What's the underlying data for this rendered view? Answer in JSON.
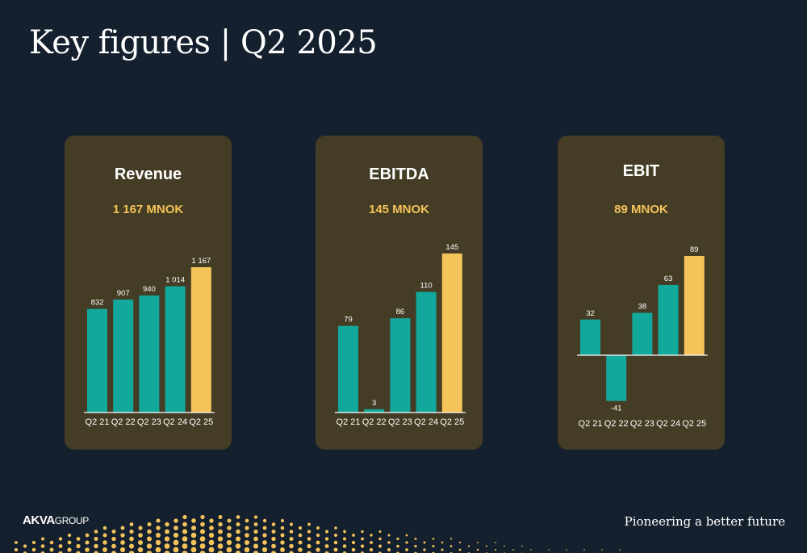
{
  "title": "Key figures | Q2 2025",
  "colors": {
    "background": "#15202f",
    "card": "#443c24",
    "teal": "#12a89b",
    "highlight": "#f4c35a",
    "text": "#ffffff"
  },
  "footer": {
    "logo_bold": "AKVA",
    "logo_light": "GROUP",
    "tagline": "Pioneering a better future"
  },
  "chart_data": [
    {
      "type": "bar",
      "title": "Revenue",
      "subtitle": "1 167 MNOK",
      "categories": [
        "Q2 21",
        "Q2 22",
        "Q2 23",
        "Q2 24",
        "Q2 25"
      ],
      "values": [
        832,
        907,
        940,
        1014,
        1167
      ],
      "data_labels": [
        "832",
        "907",
        "940",
        "1 014",
        "1 167"
      ],
      "highlight_index": 4
    },
    {
      "type": "bar",
      "title": "EBITDA",
      "subtitle": "145 MNOK",
      "categories": [
        "Q2 21",
        "Q2 22",
        "Q2 23",
        "Q2 24",
        "Q2 25"
      ],
      "values": [
        79,
        3,
        86,
        110,
        145
      ],
      "data_labels": [
        "79",
        "3",
        "86",
        "110",
        "145"
      ],
      "highlight_index": 4
    },
    {
      "type": "bar",
      "title": "EBIT",
      "subtitle": "89 MNOK",
      "categories": [
        "Q2 21",
        "Q2 22",
        "Q2 23",
        "Q2 24",
        "Q2 25"
      ],
      "values": [
        32,
        -41,
        38,
        63,
        89
      ],
      "data_labels": [
        "32",
        "-41",
        "38",
        "63",
        "89"
      ],
      "highlight_index": 4
    }
  ]
}
